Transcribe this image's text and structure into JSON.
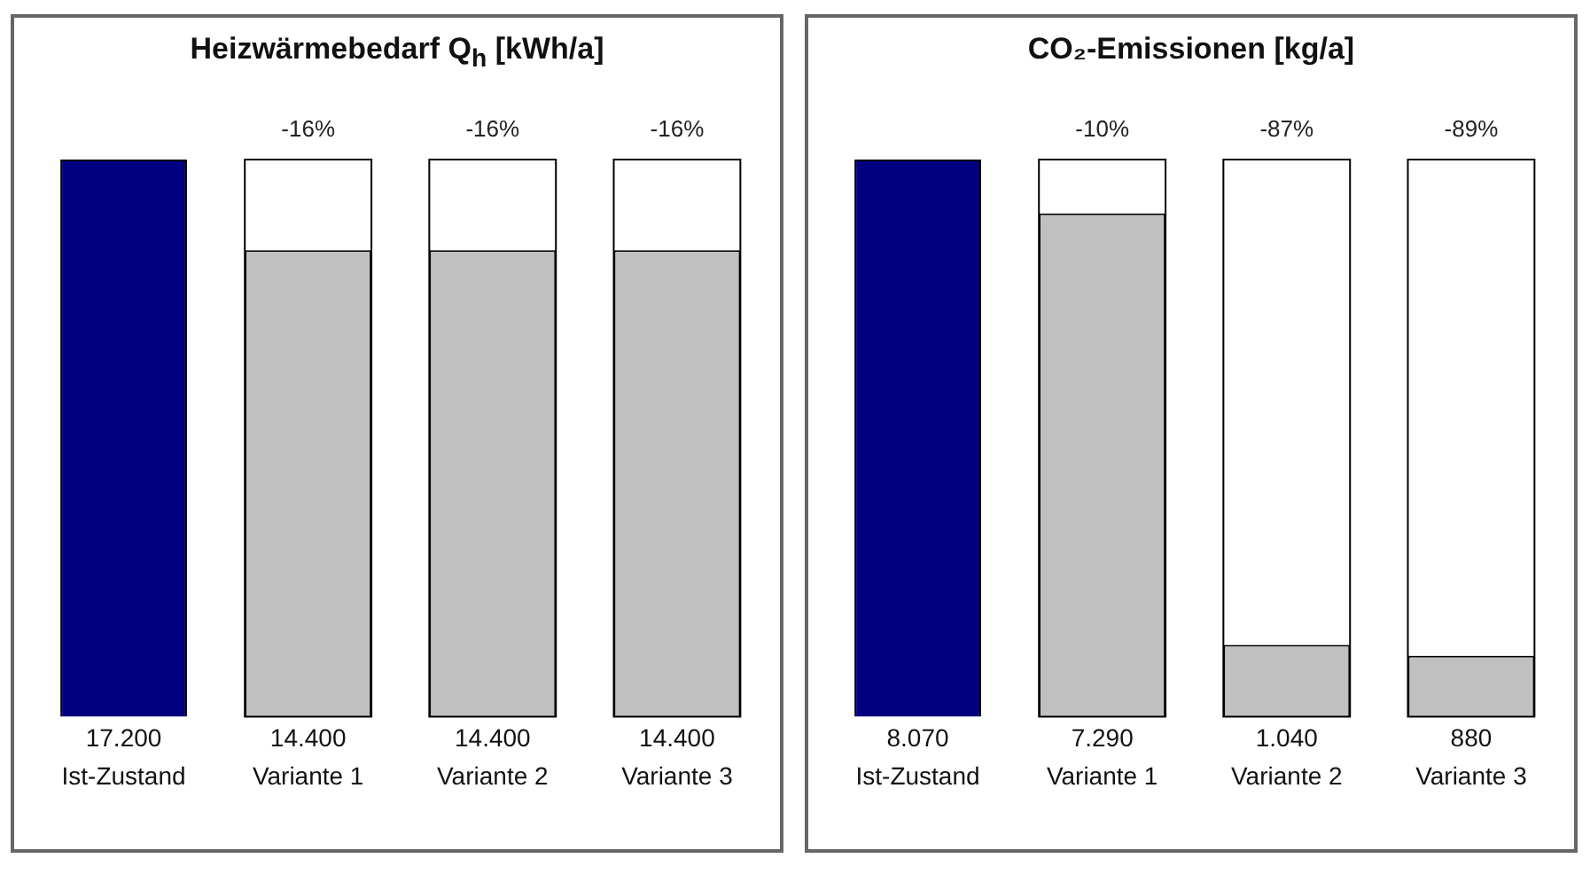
{
  "chart_data": [
    {
      "type": "bar",
      "title": "Heizwärmebedarf Q$_{h}$  [kWh/a]",
      "categories": [
        "Ist-Zustand",
        "Variante 1",
        "Variante 2",
        "Variante 3"
      ],
      "values": [
        17200,
        14400,
        14400,
        14400
      ],
      "value_labels": [
        "17.200",
        "14.400",
        "14.400",
        "14.400"
      ],
      "colors": [
        "#000080",
        "#c0c0c0",
        "#c0c0c0",
        "#c0c0c0"
      ],
      "annotations": [
        "-16%",
        "-16%",
        "-16%"
      ]
    },
    {
      "type": "bar",
      "title": "CO₂-Emissionen  [kg/a]",
      "categories": [
        "Ist-Zustand",
        "Variante 1",
        "Variante 2",
        "Variante 3"
      ],
      "values": [
        8070,
        7290,
        1040,
        880
      ],
      "value_labels": [
        "8.070",
        "7.290",
        "1.040",
        "880"
      ],
      "colors": [
        "#000080",
        "#c0c0c0",
        "#c0c0c0",
        "#c0c0c0"
      ],
      "annotations": [
        "-10%",
        "-87%",
        "-89%"
      ]
    }
  ]
}
